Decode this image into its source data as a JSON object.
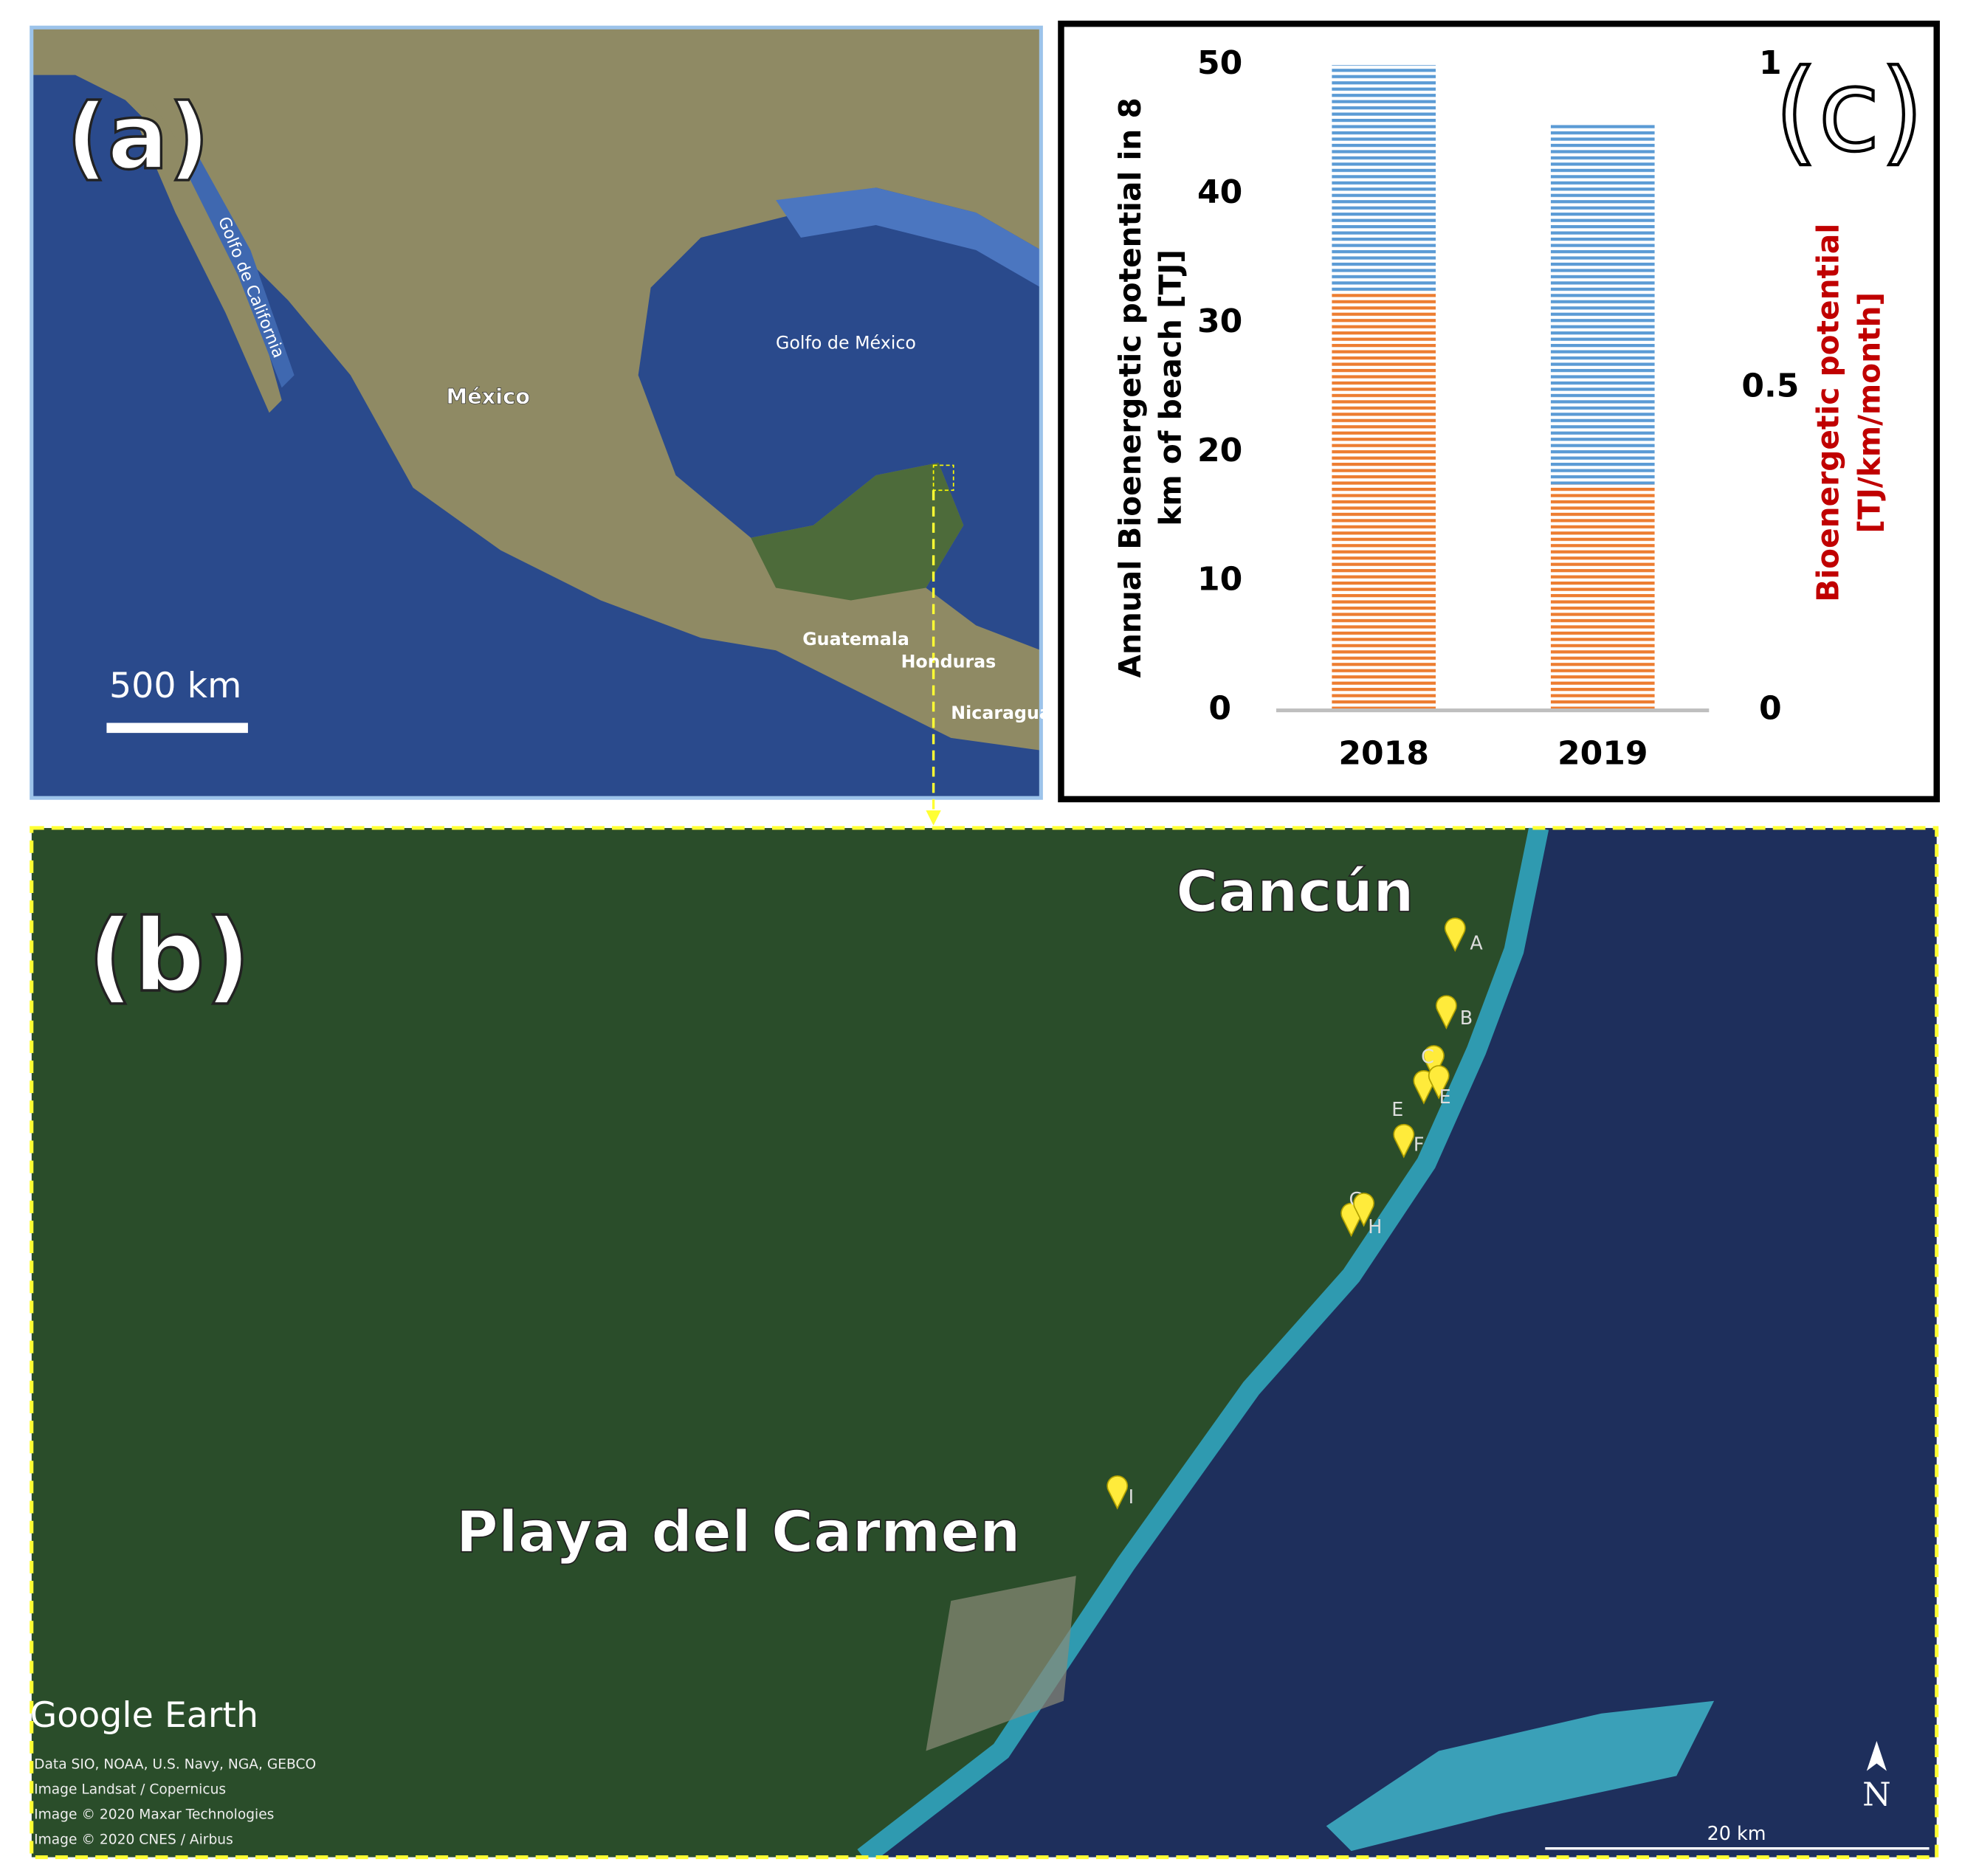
{
  "panel_a": {
    "label": "(a)",
    "scale": "500 km",
    "places": [
      "Golfo de California",
      "México",
      "Golfo de México",
      "Guatemala",
      "Honduras",
      "Nicaragua"
    ]
  },
  "panel_b": {
    "label": "(b)",
    "cities": [
      "Cancún",
      "Playa del Carmen"
    ],
    "pins": [
      "A",
      "B",
      "C",
      "E",
      "E",
      "F",
      "G",
      "H",
      "I"
    ],
    "brand": "Google Earth",
    "credits": [
      "Data SIO, NOAA, U.S. Navy, NGA, GEBCO",
      "Image Landsat / Copernicus",
      "Image © 2020 Maxar Technologies",
      "Image © 2020 CNES / Airbus"
    ],
    "scale": "20 km",
    "north": "N"
  },
  "panel_c": {
    "label": "(c)"
  },
  "chart_data": {
    "type": "stacked-bar",
    "categories": [
      "2018",
      "2019"
    ],
    "series": [
      {
        "color": "#ed7d31",
        "values": [
          32.5,
          17.5
        ]
      },
      {
        "color": "#5b9bd5",
        "values": [
          17.5,
          28
        ]
      }
    ],
    "ylim": [
      0,
      50
    ],
    "yticks": [
      0,
      10,
      20,
      30,
      40,
      50
    ],
    "y_label": [
      "Annual Bioenergetic potential in 8",
      "km of beach [TJ]"
    ],
    "y2lim": [
      0,
      1
    ],
    "y2ticks": [
      0,
      0.5,
      1
    ],
    "y2_label": [
      "Bioenergetic potential",
      "[TJ/km/month]"
    ],
    "y2_color": "#c00000"
  }
}
